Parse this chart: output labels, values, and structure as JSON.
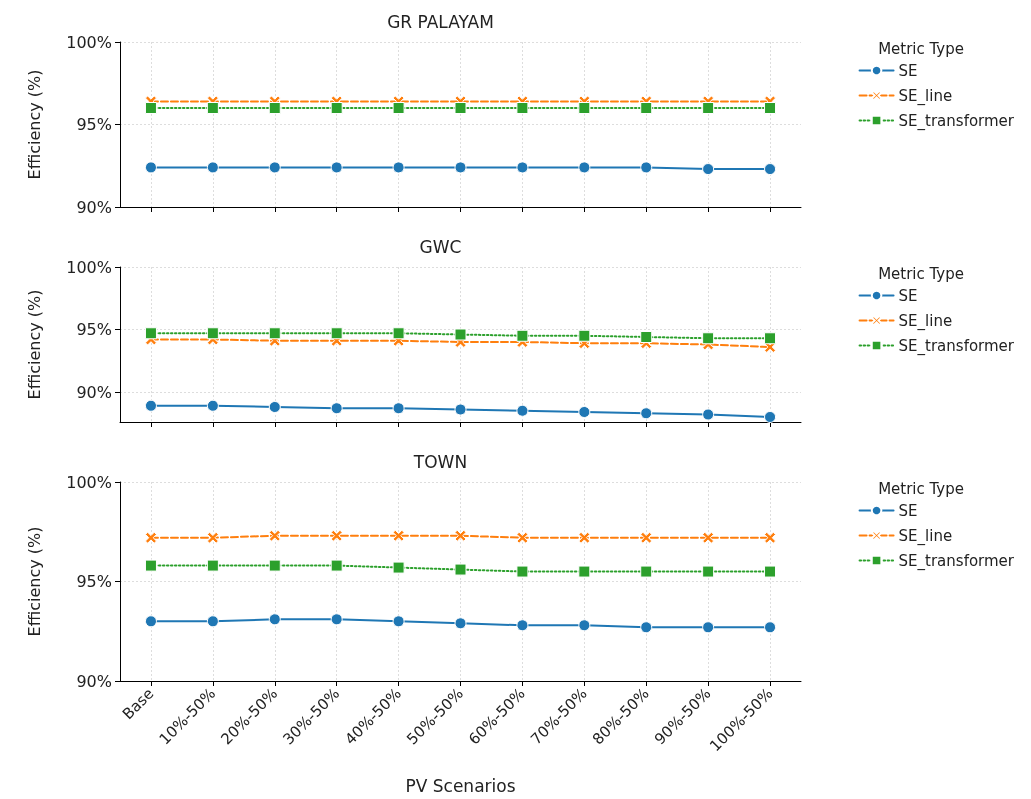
{
  "chart_data": [
    {
      "type": "line",
      "title": "GR PALAYAM",
      "ylabel": "Efficiency (%)",
      "legend_title": "Metric Type",
      "categories": [
        null,
        null,
        null,
        null,
        null,
        null,
        null,
        null,
        null,
        null,
        null
      ],
      "series": [
        {
          "name": "SE",
          "color": "#1f77b4",
          "marker": "circle",
          "line_style": "solid",
          "values": [
            92.4,
            92.4,
            92.4,
            92.4,
            92.4,
            92.4,
            92.4,
            92.4,
            92.4,
            92.3,
            92.3
          ]
        },
        {
          "name": "SE_line",
          "color": "#ff7f0e",
          "marker": "cross",
          "line_style": "dashed",
          "values": [
            96.4,
            96.4,
            96.4,
            96.4,
            96.4,
            96.4,
            96.4,
            96.4,
            96.4,
            96.4,
            96.4
          ]
        },
        {
          "name": "SE_transformer",
          "color": "#2ca02c",
          "marker": "square",
          "line_style": "dotted",
          "values": [
            96.0,
            96.0,
            96.0,
            96.0,
            96.0,
            96.0,
            96.0,
            96.0,
            96.0,
            96.0,
            96.0
          ]
        }
      ],
      "ylim": [
        90,
        100
      ],
      "yticks": [
        {
          "value": 90,
          "label": "90%"
        },
        {
          "value": 95,
          "label": "95%"
        },
        {
          "value": 100,
          "label": "100%"
        }
      ],
      "grid": true,
      "legend": "right",
      "tick_labels": "y"
    },
    {
      "type": "line",
      "title": "GWC",
      "ylabel": "Efficiency (%)",
      "legend_title": "Metric Type",
      "categories": [
        null,
        null,
        null,
        null,
        null,
        null,
        null,
        null,
        null,
        null,
        null
      ],
      "series": [
        {
          "name": "SE",
          "color": "#1f77b4",
          "marker": "circle",
          "line_style": "solid",
          "values": [
            88.9,
            88.9,
            88.8,
            88.7,
            88.7,
            88.6,
            88.5,
            88.4,
            88.3,
            88.2,
            88.0
          ]
        },
        {
          "name": "SE_line",
          "color": "#ff7f0e",
          "marker": "cross",
          "line_style": "dashed",
          "values": [
            94.2,
            94.2,
            94.1,
            94.1,
            94.1,
            94.0,
            94.0,
            93.9,
            93.9,
            93.8,
            93.6
          ]
        },
        {
          "name": "SE_transformer",
          "color": "#2ca02c",
          "marker": "square",
          "line_style": "dotted",
          "values": [
            94.7,
            94.7,
            94.7,
            94.7,
            94.7,
            94.6,
            94.5,
            94.5,
            94.4,
            94.3,
            94.3
          ]
        }
      ],
      "ylim": [
        87.6,
        100
      ],
      "yticks": [
        {
          "value": 90,
          "label": "90%"
        },
        {
          "value": 95,
          "label": "95%"
        },
        {
          "value": 100,
          "label": "100%"
        }
      ],
      "grid": true,
      "legend": "right",
      "tick_labels": "y"
    },
    {
      "type": "line",
      "title": "TOWN",
      "xlabel": "PV Scenarios",
      "ylabel": "Efficiency (%)",
      "legend_title": "Metric Type",
      "categories": [
        "Base",
        "10%-50%",
        "20%-50%",
        "30%-50%",
        "40%-50%",
        "50%-50%",
        "60%-50%",
        "70%-50%",
        "80%-50%",
        "90%-50%",
        "100%-50%"
      ],
      "series": [
        {
          "name": "SE",
          "color": "#1f77b4",
          "marker": "circle",
          "line_style": "solid",
          "values": [
            93.0,
            93.0,
            93.1,
            93.1,
            93.0,
            92.9,
            92.8,
            92.8,
            92.7,
            92.7,
            92.7
          ]
        },
        {
          "name": "SE_line",
          "color": "#ff7f0e",
          "marker": "cross",
          "line_style": "dashed",
          "values": [
            97.2,
            97.2,
            97.3,
            97.3,
            97.3,
            97.3,
            97.2,
            97.2,
            97.2,
            97.2,
            97.2
          ]
        },
        {
          "name": "SE_transformer",
          "color": "#2ca02c",
          "marker": "square",
          "line_style": "dotted",
          "values": [
            95.8,
            95.8,
            95.8,
            95.8,
            95.7,
            95.6,
            95.5,
            95.5,
            95.5,
            95.5,
            95.5
          ]
        }
      ],
      "ylim": [
        90,
        100
      ],
      "yticks": [
        {
          "value": 90,
          "label": "90%"
        },
        {
          "value": 95,
          "label": "95%"
        },
        {
          "value": 100,
          "label": "100%"
        }
      ],
      "grid": true,
      "legend": "right"
    }
  ]
}
